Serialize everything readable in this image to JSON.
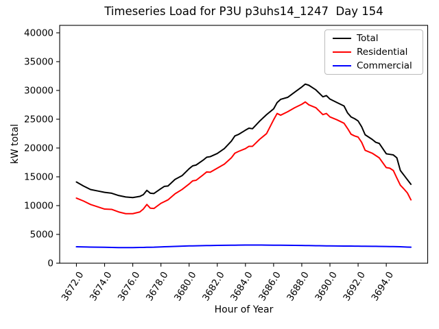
{
  "figure": {
    "title": "Timeseries Load for P3U p3uhs14_1247  Day 154",
    "xlabel": "Hour of Year",
    "ylabel": "kW total"
  },
  "chart_data": {
    "type": "line",
    "title": "Timeseries Load for P3U p3uhs14_1247  Day 154",
    "xlabel": "Hour of Year",
    "ylabel": "kW total",
    "xlim": [
      3670.81,
      3696.94
    ],
    "ylim": [
      0,
      41300
    ],
    "xticks": [
      3672,
      3674,
      3676,
      3678,
      3680,
      3682,
      3684,
      3686,
      3688,
      3690,
      3692,
      3694
    ],
    "xtick_labels": [
      "3672.0",
      "3674.0",
      "3676.0",
      "3678.0",
      "3680.0",
      "3682.0",
      "3684.0",
      "3686.0",
      "3688.0",
      "3690.0",
      "3692.0",
      "3694.0"
    ],
    "yticks": [
      0,
      5000,
      10000,
      15000,
      20000,
      25000,
      30000,
      35000,
      40000
    ],
    "ytick_labels": [
      "0",
      "5000",
      "10000",
      "15000",
      "20000",
      "25000",
      "30000",
      "35000",
      "40000"
    ],
    "grid": false,
    "legend_position": "upper right",
    "x": [
      3672,
      3672.5,
      3673,
      3673.5,
      3674,
      3674.5,
      3675,
      3675.5,
      3676,
      3676.5,
      3676.75,
      3677,
      3677.25,
      3677.5,
      3678,
      3678.25,
      3678.5,
      3679,
      3679.5,
      3680,
      3680.25,
      3680.5,
      3681,
      3681.25,
      3681.5,
      3682,
      3682.5,
      3683,
      3683.25,
      3683.5,
      3684,
      3684.25,
      3684.5,
      3685,
      3685.5,
      3686,
      3686.25,
      3686.5,
      3687,
      3687.5,
      3688,
      3688.25,
      3688.5,
      3689,
      3689.25,
      3689.5,
      3689.75,
      3690,
      3690.5,
      3691,
      3691.25,
      3691.5,
      3691.75,
      3692,
      3692.25,
      3692.5,
      3693,
      3693.25,
      3693.5,
      3694,
      3694.25,
      3694.5,
      3694.75,
      3695,
      3695.25,
      3695.5,
      3695.75
    ],
    "series": [
      {
        "name": "Total",
        "color": "#000000",
        "values": [
          14100,
          13400,
          12800,
          12550,
          12300,
          12150,
          11750,
          11500,
          11400,
          11600,
          11900,
          12650,
          12150,
          12100,
          12950,
          13350,
          13400,
          14550,
          15200,
          16400,
          16900,
          17050,
          17900,
          18400,
          18500,
          19050,
          19900,
          21200,
          22100,
          22350,
          23100,
          23450,
          23350,
          24650,
          25800,
          26800,
          27900,
          28450,
          28800,
          29700,
          30600,
          31100,
          30900,
          30100,
          29500,
          28900,
          29100,
          28500,
          27900,
          27300,
          26100,
          25400,
          25100,
          24700,
          23700,
          22300,
          21500,
          21000,
          20800,
          19000,
          18900,
          18800,
          18300,
          16100,
          15300,
          14500,
          13700
        ]
      },
      {
        "name": "Residential",
        "color": "#ff0000",
        "values": [
          11300,
          10800,
          10200,
          9800,
          9400,
          9350,
          8900,
          8600,
          8600,
          8900,
          9400,
          10200,
          9550,
          9500,
          10400,
          10700,
          11000,
          12050,
          12800,
          13750,
          14300,
          14400,
          15350,
          15850,
          15800,
          16500,
          17200,
          18300,
          19100,
          19400,
          19900,
          20300,
          20300,
          21500,
          22500,
          24900,
          26000,
          25700,
          26300,
          27000,
          27600,
          28000,
          27500,
          27000,
          26400,
          25800,
          26000,
          25400,
          24900,
          24300,
          23400,
          22400,
          22100,
          21900,
          21000,
          19600,
          19100,
          18700,
          18300,
          16600,
          16500,
          16100,
          14800,
          13550,
          12900,
          12200,
          11000
        ]
      },
      {
        "name": "Commercial",
        "color": "#0000ff",
        "values": [
          2850,
          2830,
          2800,
          2780,
          2760,
          2730,
          2710,
          2700,
          2710,
          2730,
          2740,
          2760,
          2770,
          2780,
          2830,
          2850,
          2870,
          2920,
          2960,
          3000,
          3010,
          3020,
          3050,
          3060,
          3070,
          3090,
          3110,
          3120,
          3130,
          3140,
          3150,
          3155,
          3155,
          3150,
          3140,
          3130,
          3125,
          3120,
          3110,
          3090,
          3080,
          3070,
          3060,
          3040,
          3030,
          3020,
          3010,
          3000,
          2990,
          2980,
          2975,
          2970,
          2965,
          2960,
          2950,
          2945,
          2930,
          2925,
          2920,
          2900,
          2890,
          2880,
          2870,
          2850,
          2830,
          2800,
          2780
        ]
      }
    ]
  }
}
